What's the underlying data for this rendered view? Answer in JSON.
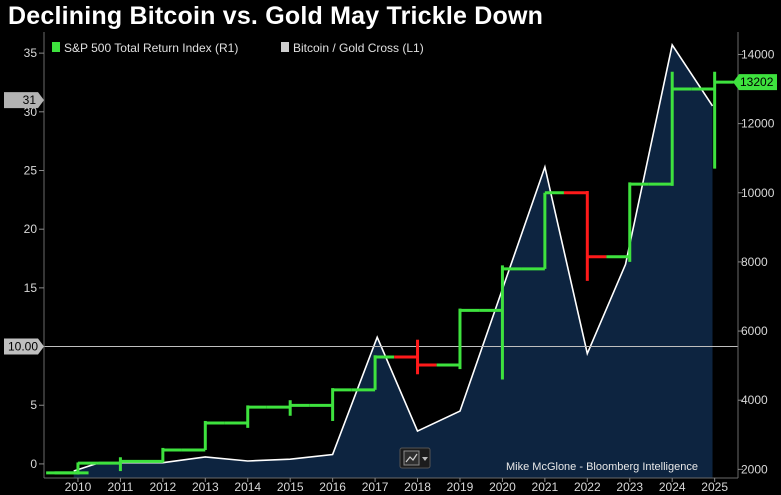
{
  "title": "Declining Bitcoin vs. Gold May Trickle Down",
  "source": "Mike McGlone - Bloomberg Intelligence",
  "chart_data": {
    "type": "line",
    "x_labels": [
      "2010",
      "2011",
      "2012",
      "2013",
      "2014",
      "2015",
      "2016",
      "2017",
      "2018",
      "2019",
      "2020",
      "2021",
      "2022",
      "2023",
      "2024",
      "2025"
    ],
    "left_axis": {
      "ticks": [
        0,
        5,
        10,
        15,
        20,
        25,
        30,
        35
      ],
      "ylim": [
        -1.2,
        36.8
      ]
    },
    "right_axis": {
      "ticks": [
        2000,
        4000,
        6000,
        8000,
        10000,
        12000,
        14000
      ],
      "ylim": [
        1750,
        14650
      ]
    },
    "series": [
      {
        "name": "S&P 500 Total Return Index",
        "axis": "R1",
        "style": "candle",
        "color_up": "#3ee23e",
        "color_down": "#ff1a1a",
        "candles": [
          {
            "x": 2009.8,
            "open": 1900,
            "close": 1900,
            "high": 1900,
            "low": 1900
          },
          {
            "x": 2010.0,
            "open": 1900,
            "close": 2180,
            "high": 2200,
            "low": 1850
          },
          {
            "x": 2011.0,
            "open": 2180,
            "close": 2230,
            "high": 2350,
            "low": 1950
          },
          {
            "x": 2012.0,
            "open": 2230,
            "close": 2560,
            "high": 2620,
            "low": 2200
          },
          {
            "x": 2013.0,
            "open": 2560,
            "close": 3340,
            "high": 3400,
            "low": 2560
          },
          {
            "x": 2014.0,
            "open": 3340,
            "close": 3800,
            "high": 3850,
            "low": 3200
          },
          {
            "x": 2015.0,
            "open": 3800,
            "close": 3850,
            "high": 4000,
            "low": 3550
          },
          {
            "x": 2016.0,
            "open": 3850,
            "close": 4300,
            "high": 4350,
            "low": 3400
          },
          {
            "x": 2017.0,
            "open": 4300,
            "close": 5250,
            "high": 5300,
            "low": 4300
          },
          {
            "x": 2018.0,
            "open": 5250,
            "close": 5020,
            "high": 5750,
            "low": 4750
          },
          {
            "x": 2019.0,
            "open": 5020,
            "close": 6600,
            "high": 6650,
            "low": 4900
          },
          {
            "x": 2020.0,
            "open": 6600,
            "close": 7800,
            "high": 7900,
            "low": 4600
          },
          {
            "x": 2021.0,
            "open": 7800,
            "close": 10000,
            "high": 10000,
            "low": 7800
          },
          {
            "x": 2022.0,
            "open": 10000,
            "close": 8150,
            "high": 10050,
            "low": 7450
          },
          {
            "x": 2023.0,
            "open": 8150,
            "close": 10250,
            "high": 10300,
            "low": 8000
          },
          {
            "x": 2024.0,
            "open": 10250,
            "close": 13000,
            "high": 13500,
            "low": 10200
          },
          {
            "x": 2025.0,
            "open": 13000,
            "close": 13202,
            "high": 13500,
            "low": 10700
          }
        ],
        "last_value": "13202"
      },
      {
        "name": "Bitcoin / Gold Cross",
        "axis": "L1",
        "style": "area",
        "color": "#ffffff",
        "fill": "#0d2440",
        "points": [
          {
            "x": 2009.9,
            "y": -0.6
          },
          {
            "x": 2010.5,
            "y": 0.1
          },
          {
            "x": 2012.0,
            "y": 0.1
          },
          {
            "x": 2013.0,
            "y": 0.6
          },
          {
            "x": 2014.0,
            "y": 0.25
          },
          {
            "x": 2015.0,
            "y": 0.4
          },
          {
            "x": 2016.0,
            "y": 0.8
          },
          {
            "x": 2017.05,
            "y": 10.8
          },
          {
            "x": 2018.0,
            "y": 2.8
          },
          {
            "x": 2019.0,
            "y": 4.5
          },
          {
            "x": 2021.0,
            "y": 25.3
          },
          {
            "x": 2022.0,
            "y": 9.4
          },
          {
            "x": 2022.9,
            "y": 17.0
          },
          {
            "x": 2024.0,
            "y": 35.7
          },
          {
            "x": 2024.95,
            "y": 30.5
          }
        ],
        "last_value": "31"
      }
    ],
    "reference_line": {
      "axis": "L1",
      "value": 10,
      "label": "10.00"
    }
  }
}
